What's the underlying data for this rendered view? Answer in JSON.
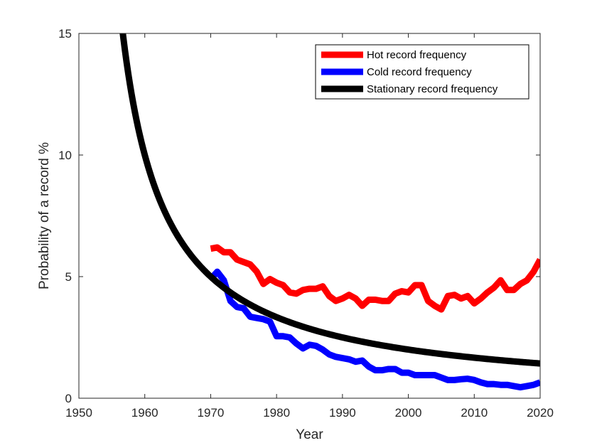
{
  "chart_data": {
    "type": "line",
    "title": "",
    "xlabel": "Year",
    "ylabel": "Probability of a record %",
    "xlim": [
      1950,
      2020
    ],
    "ylim": [
      0,
      15
    ],
    "xticks": [
      1950,
      1960,
      1970,
      1980,
      1990,
      2000,
      2010,
      2020
    ],
    "yticks": [
      0,
      5,
      10,
      15
    ],
    "grid": false,
    "legend_position": "top-right",
    "series": [
      {
        "name": "Hot record frequency",
        "color": "#ff0000",
        "x": [
          1970,
          1971,
          1972,
          1973,
          1974,
          1975,
          1976,
          1977,
          1978,
          1979,
          1980,
          1981,
          1982,
          1983,
          1984,
          1985,
          1986,
          1987,
          1988,
          1989,
          1990,
          1991,
          1992,
          1993,
          1994,
          1995,
          1996,
          1997,
          1998,
          1999,
          2000,
          2001,
          2002,
          2003,
          2004,
          2005,
          2006,
          2007,
          2008,
          2009,
          2010,
          2011,
          2012,
          2013,
          2014,
          2015,
          2016,
          2017,
          2018,
          2019,
          2020
        ],
        "y": [
          6.15,
          6.2,
          6.0,
          6.0,
          5.7,
          5.6,
          5.5,
          5.2,
          4.7,
          4.9,
          4.75,
          4.65,
          4.35,
          4.3,
          4.45,
          4.5,
          4.5,
          4.6,
          4.2,
          4.0,
          4.1,
          4.25,
          4.1,
          3.8,
          4.05,
          4.05,
          4.0,
          4.0,
          4.3,
          4.4,
          4.35,
          4.65,
          4.65,
          4.0,
          3.8,
          3.65,
          4.2,
          4.25,
          4.1,
          4.2,
          3.9,
          4.1,
          4.35,
          4.55,
          4.85,
          4.45,
          4.45,
          4.7,
          4.85,
          5.2,
          5.7
        ]
      },
      {
        "name": "Cold record frequency",
        "color": "#0000ff",
        "x": [
          1970,
          1971,
          1972,
          1973,
          1974,
          1975,
          1976,
          1977,
          1978,
          1979,
          1980,
          1981,
          1982,
          1983,
          1984,
          1985,
          1986,
          1987,
          1988,
          1989,
          1990,
          1991,
          1992,
          1993,
          1994,
          1995,
          1996,
          1997,
          1998,
          1999,
          2000,
          2001,
          2002,
          2003,
          2004,
          2005,
          2006,
          2007,
          2008,
          2009,
          2010,
          2011,
          2012,
          2013,
          2014,
          2015,
          2016,
          2017,
          2018,
          2019,
          2020
        ],
        "y": [
          4.9,
          5.2,
          4.85,
          4.0,
          3.75,
          3.7,
          3.35,
          3.3,
          3.25,
          3.15,
          2.55,
          2.55,
          2.5,
          2.25,
          2.05,
          2.2,
          2.15,
          2.0,
          1.8,
          1.7,
          1.65,
          1.6,
          1.5,
          1.55,
          1.3,
          1.15,
          1.15,
          1.2,
          1.2,
          1.05,
          1.05,
          0.95,
          0.95,
          0.95,
          0.95,
          0.85,
          0.75,
          0.75,
          0.78,
          0.8,
          0.75,
          0.65,
          0.58,
          0.58,
          0.55,
          0.55,
          0.5,
          0.45,
          0.5,
          0.55,
          0.65
        ]
      },
      {
        "name": "Stationary record frequency",
        "color": "#000000",
        "function": "100/n",
        "n_start_year": 1950,
        "x_range": [
          1955.5,
          2020
        ]
      }
    ]
  }
}
